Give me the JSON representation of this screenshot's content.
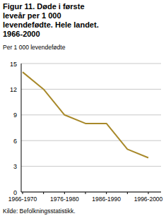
{
  "chart_data": {
    "type": "line",
    "title": "Figur 11. Døde i første leveår per 1 000 levendefødte. Hele landet. 1966-2000",
    "y_label": "Per 1 000 levendefødte",
    "source": "Kilde: Befolkningsstatistikk.",
    "categories": [
      "1966-1970",
      null,
      "1976-1980",
      null,
      "1986-1990",
      null,
      "1996-2000"
    ],
    "values": [
      14,
      12,
      9,
      8,
      8,
      5,
      4
    ],
    "color": "#a8892a",
    "ylim": [
      0,
      15
    ],
    "yticks": [
      0,
      3,
      6,
      9,
      12,
      15
    ],
    "grid": true
  }
}
